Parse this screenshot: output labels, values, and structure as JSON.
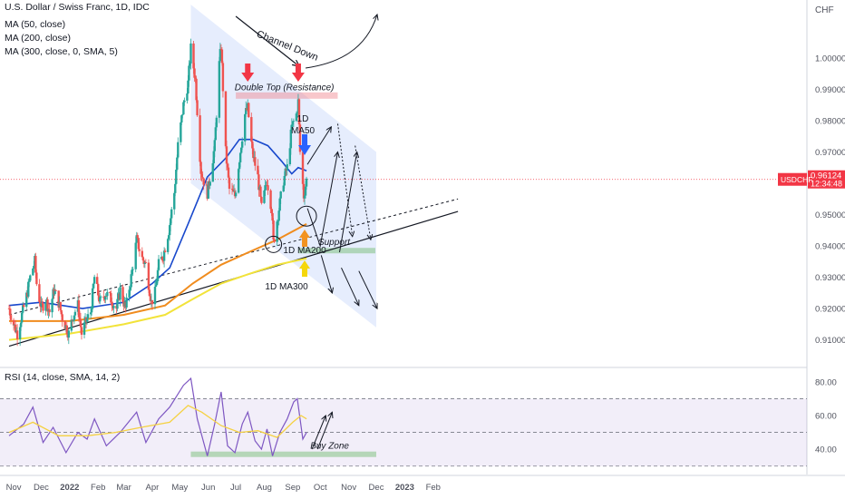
{
  "chart_data": [
    {
      "type": "candlestick",
      "title": "U.S. Dollar / Swiss Franc, 1D, IDC",
      "indicators": [
        "MA (50, close)",
        "MA (200, close)",
        "MA (300, close, 0, SMA, 5)"
      ],
      "currency_label": "CHF",
      "symbol": "USDCHF",
      "last_price": "0.96124",
      "countdown": "12:34:48",
      "y_ticks": [
        "1.00000",
        "0.99000",
        "0.98000",
        "0.97000",
        "0.96000",
        "0.95000",
        "0.94000",
        "0.93000",
        "0.92000",
        "0.91000"
      ],
      "ylim": [
        0.9015,
        1.0185
      ],
      "x_ticks": [
        "Nov",
        "Dec",
        "2022",
        "Feb",
        "Mar",
        "Apr",
        "May",
        "Jun",
        "Jul",
        "Aug",
        "Sep",
        "Oct",
        "Nov",
        "Dec",
        "2023",
        "Feb"
      ],
      "path": [
        [
          "2021-10-27",
          0.92
        ],
        [
          "2021-11-01",
          0.915
        ],
        [
          "2021-11-05",
          0.912
        ],
        [
          "2021-11-10",
          0.918
        ],
        [
          "2021-11-15",
          0.924
        ],
        [
          "2021-11-19",
          0.93
        ],
        [
          "2021-11-24",
          0.935
        ],
        [
          "2021-11-26",
          0.928
        ],
        [
          "2021-12-01",
          0.92
        ],
        [
          "2021-12-06",
          0.923
        ],
        [
          "2021-12-10",
          0.919
        ],
        [
          "2021-12-15",
          0.926
        ],
        [
          "2021-12-20",
          0.922
        ],
        [
          "2021-12-24",
          0.917
        ],
        [
          "2021-12-31",
          0.912
        ],
        [
          "2022-01-05",
          0.918
        ],
        [
          "2022-01-10",
          0.921
        ],
        [
          "2022-01-14",
          0.912
        ],
        [
          "2022-01-19",
          0.916
        ],
        [
          "2022-01-24",
          0.919
        ],
        [
          "2022-01-28",
          0.93
        ],
        [
          "2022-02-03",
          0.922
        ],
        [
          "2022-02-09",
          0.925
        ],
        [
          "2022-02-15",
          0.923
        ],
        [
          "2022-02-21",
          0.92
        ],
        [
          "2022-02-25",
          0.926
        ],
        [
          "2022-03-03",
          0.92
        ],
        [
          "2022-03-09",
          0.93
        ],
        [
          "2022-03-15",
          0.942
        ],
        [
          "2022-03-21",
          0.936
        ],
        [
          "2022-03-25",
          0.934
        ],
        [
          "2022-03-31",
          0.922
        ],
        [
          "2022-04-04",
          0.925
        ],
        [
          "2022-04-08",
          0.934
        ],
        [
          "2022-04-13",
          0.937
        ],
        [
          "2022-04-19",
          0.945
        ],
        [
          "2022-04-25",
          0.957
        ],
        [
          "2022-04-29",
          0.972
        ],
        [
          "2022-05-05",
          0.985
        ],
        [
          "2022-05-10",
          0.992
        ],
        [
          "2022-05-13",
          1.003
        ],
        [
          "2022-05-18",
          0.993
        ],
        [
          "2022-05-24",
          0.964
        ],
        [
          "2022-05-31",
          0.957
        ],
        [
          "2022-06-03",
          0.962
        ],
        [
          "2022-06-08",
          0.972
        ],
        [
          "2022-06-13",
          0.998
        ],
        [
          "2022-06-15",
          1.004
        ],
        [
          "2022-06-20",
          0.97
        ],
        [
          "2022-06-24",
          0.958
        ],
        [
          "2022-06-30",
          0.956
        ],
        [
          "2022-07-05",
          0.968
        ],
        [
          "2022-07-11",
          0.982
        ],
        [
          "2022-07-14",
          0.984
        ],
        [
          "2022-07-19",
          0.97
        ],
        [
          "2022-07-25",
          0.962
        ],
        [
          "2022-07-29",
          0.952
        ],
        [
          "2022-08-04",
          0.961
        ],
        [
          "2022-08-09",
          0.952
        ],
        [
          "2022-08-11",
          0.941
        ],
        [
          "2022-08-16",
          0.95
        ],
        [
          "2022-08-22",
          0.961
        ],
        [
          "2022-08-26",
          0.965
        ],
        [
          "2022-08-31",
          0.978
        ],
        [
          "2022-09-05",
          0.982
        ],
        [
          "2022-09-07",
          0.986
        ],
        [
          "2022-09-09",
          0.97
        ],
        [
          "2022-09-13",
          0.956
        ],
        [
          "2022-09-16",
          0.961
        ]
      ],
      "series": [
        {
          "name": "MA (50, close)",
          "color": "#1848cc",
          "points": [
            [
              "2021-10-27",
              0.921
            ],
            [
              "2021-12-01",
              0.922
            ],
            [
              "2022-01-15",
              0.92
            ],
            [
              "2022-03-01",
              0.922
            ],
            [
              "2022-04-01",
              0.928
            ],
            [
              "2022-04-20",
              0.933
            ],
            [
              "2022-05-10",
              0.947
            ],
            [
              "2022-05-31",
              0.962
            ],
            [
              "2022-06-20",
              0.968
            ],
            [
              "2022-07-05",
              0.974
            ],
            [
              "2022-07-20",
              0.974
            ],
            [
              "2022-08-05",
              0.972
            ],
            [
              "2022-08-20",
              0.967
            ],
            [
              "2022-08-31",
              0.963
            ],
            [
              "2022-09-07",
              0.965
            ],
            [
              "2022-09-16",
              0.964
            ]
          ]
        },
        {
          "name": "MA (200, close)",
          "color": "#f08c1e",
          "points": [
            [
              "2021-10-27",
              0.916
            ],
            [
              "2022-01-01",
              0.916
            ],
            [
              "2022-03-01",
              0.918
            ],
            [
              "2022-04-15",
              0.921
            ],
            [
              "2022-05-15",
              0.928
            ],
            [
              "2022-06-15",
              0.934
            ],
            [
              "2022-07-15",
              0.938
            ],
            [
              "2022-08-15",
              0.942
            ],
            [
              "2022-09-16",
              0.947
            ]
          ]
        },
        {
          "name": "MA (300, close, 0, SMA, 5)",
          "color": "#f2e33a",
          "points": [
            [
              "2021-10-27",
              0.91
            ],
            [
              "2022-01-01",
              0.912
            ],
            [
              "2022-03-01",
              0.915
            ],
            [
              "2022-04-15",
              0.918
            ],
            [
              "2022-05-15",
              0.923
            ],
            [
              "2022-06-15",
              0.928
            ],
            [
              "2022-07-15",
              0.931
            ],
            [
              "2022-08-15",
              0.934
            ],
            [
              "2022-09-16",
              0.936
            ]
          ]
        }
      ],
      "annotations": {
        "channel": {
          "label": "Channel Down",
          "upper": [
            [
              "2022-05-13",
              1.017
            ],
            [
              "2022-12-01",
              0.97
            ]
          ],
          "lower": [
            [
              "2022-05-13",
              0.96
            ],
            [
              "2022-12-01",
              0.914
            ]
          ]
        },
        "double_top": {
          "label": "Double Top (Resistance)",
          "from": "2022-07-01",
          "to": "2022-10-20",
          "level": 0.988
        },
        "support": {
          "label": "Support",
          "from": "2022-09-07",
          "to": "2022-11-30",
          "level": 0.9385
        },
        "trendline_solid": [
          [
            "2021-10-27",
            0.908
          ],
          [
            "2023-02-28",
            0.951
          ]
        ],
        "trendline_dashed": [
          [
            "2021-10-27",
            0.918
          ],
          [
            "2023-02-28",
            0.955
          ]
        ],
        "ma50_label": "1D\nMA50",
        "ma200_label": "1D MA200",
        "ma300_label": "1D MA300"
      },
      "arrows": {
        "red": [
          "2022-07-14",
          "2022-09-07"
        ],
        "blue": "2022-09-14",
        "orange": "2022-09-14",
        "yellow": "2022-09-14"
      },
      "projections": {
        "solid": [
          [
            [
              "2022-09-17",
              0.952
            ],
            [
              "2022-10-01",
              0.94
            ],
            [
              "2022-10-20",
              0.97
            ]
          ]
        ],
        "dotted": [
          [
            [
              "2022-10-20",
              0.979
            ],
            [
              "2022-11-05",
              0.943
            ]
          ],
          [
            [
              "2022-11-08",
              0.972
            ],
            [
              "2022-11-25",
              0.942
            ]
          ]
        ]
      }
    },
    {
      "type": "line",
      "title": "RSI (14, close, SMA, 14, 2)",
      "y_ticks": [
        "80.00",
        "60.00",
        "40.00"
      ],
      "ylim": [
        25,
        88
      ],
      "band": [
        30,
        70
      ],
      "series": [
        {
          "name": "RSI",
          "color": "#7e57c2",
          "points": [
            [
              "2021-10-27",
              48
            ],
            [
              "2021-11-12",
              55
            ],
            [
              "2021-11-22",
              65
            ],
            [
              "2021-12-03",
              44
            ],
            [
              "2021-12-14",
              53
            ],
            [
              "2021-12-28",
              38
            ],
            [
              "2022-01-10",
              50
            ],
            [
              "2022-01-20",
              46
            ],
            [
              "2022-01-28",
              58
            ],
            [
              "2022-02-10",
              42
            ],
            [
              "2022-02-25",
              50
            ],
            [
              "2022-03-15",
              62
            ],
            [
              "2022-03-25",
              44
            ],
            [
              "2022-04-08",
              58
            ],
            [
              "2022-04-20",
              65
            ],
            [
              "2022-05-05",
              78
            ],
            [
              "2022-05-13",
              82
            ],
            [
              "2022-05-20",
              58
            ],
            [
              "2022-05-31",
              36
            ],
            [
              "2022-06-08",
              55
            ],
            [
              "2022-06-15",
              74
            ],
            [
              "2022-06-22",
              42
            ],
            [
              "2022-06-30",
              38
            ],
            [
              "2022-07-08",
              55
            ],
            [
              "2022-07-14",
              62
            ],
            [
              "2022-07-22",
              45
            ],
            [
              "2022-07-29",
              40
            ],
            [
              "2022-08-04",
              52
            ],
            [
              "2022-08-10",
              36
            ],
            [
              "2022-08-18",
              50
            ],
            [
              "2022-08-26",
              58
            ],
            [
              "2022-09-02",
              68
            ],
            [
              "2022-09-06",
              70
            ],
            [
              "2022-09-12",
              46
            ],
            [
              "2022-09-16",
              50
            ]
          ]
        },
        {
          "name": "RSI-based MA",
          "color": "#f5d142",
          "points": [
            [
              "2021-10-27",
              50
            ],
            [
              "2021-11-22",
              56
            ],
            [
              "2021-12-20",
              48
            ],
            [
              "2022-01-20",
              48
            ],
            [
              "2022-02-20",
              50
            ],
            [
              "2022-03-20",
              53
            ],
            [
              "2022-04-20",
              56
            ],
            [
              "2022-05-10",
              66
            ],
            [
              "2022-05-25",
              62
            ],
            [
              "2022-06-15",
              54
            ],
            [
              "2022-07-05",
              50
            ],
            [
              "2022-07-25",
              51
            ],
            [
              "2022-08-15",
              47
            ],
            [
              "2022-09-01",
              56
            ],
            [
              "2022-09-10",
              60
            ],
            [
              "2022-09-16",
              58
            ]
          ]
        }
      ],
      "annotations": {
        "buy_zone": {
          "label": "Buy Zone",
          "from": "2022-05-13",
          "to": "2022-12-01",
          "level": 37
        }
      }
    }
  ]
}
